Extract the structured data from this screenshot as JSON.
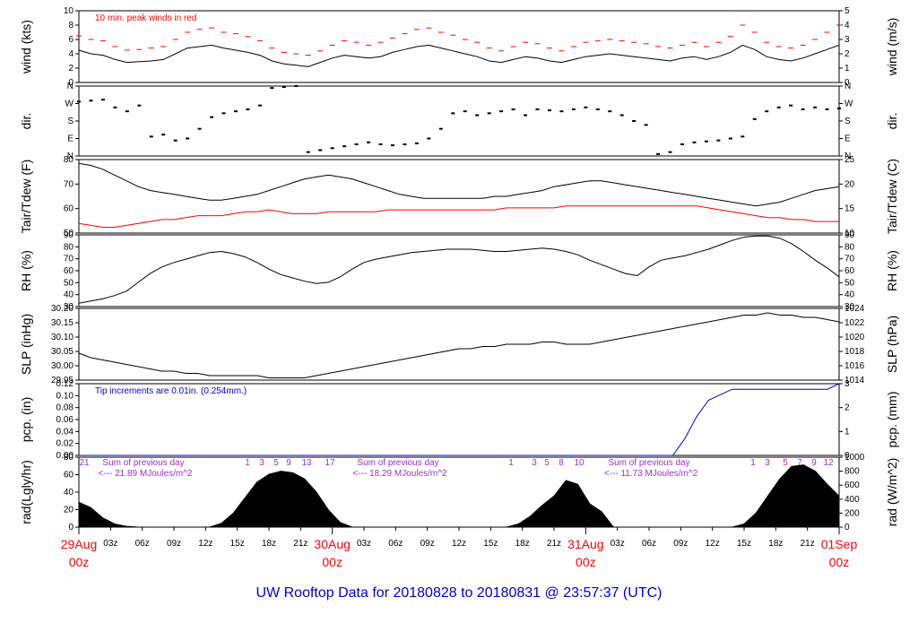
{
  "title": "UW Rooftop Data for 20180828  to  20180831 @ 23:57:37  (UTC)",
  "colors": {
    "title": "#0000cc",
    "peak": "#ff0000",
    "tdew": "#ff0000",
    "pcp": "#0000cc",
    "rad_note": "#9933cc",
    "day_label": "#ff0000",
    "trace": "#000000"
  },
  "time_axis": {
    "hours": [
      "03z",
      "06z",
      "09z",
      "12z",
      "15z",
      "18z",
      "21z",
      "03z",
      "06z",
      "09z",
      "12z",
      "15z",
      "18z",
      "21z",
      "03z",
      "06z",
      "09z",
      "12z",
      "15z",
      "18z",
      "21z"
    ],
    "days": [
      {
        "date": "29Aug",
        "hour": "00z"
      },
      {
        "date": "30Aug",
        "hour": "00z"
      },
      {
        "date": "31Aug",
        "hour": "00z"
      },
      {
        "date": "01Sep",
        "hour": "00z"
      }
    ]
  },
  "chart_data": [
    {
      "type": "line",
      "id": "wind",
      "ylabel_left": "wind (kts)",
      "ylabel_right": "wind (m/s)",
      "ylim": [
        0,
        10
      ],
      "yticks": [
        "0",
        "2",
        "4",
        "6",
        "8",
        "10"
      ],
      "yticks_right": [
        "0",
        "1",
        "2",
        "3",
        "4",
        "5"
      ],
      "annotation": "10 min. peak winds in red",
      "series": [
        {
          "name": "wind",
          "values": [
            4.5,
            4.0,
            3.8,
            3.2,
            2.8,
            2.9,
            3.0,
            3.2,
            4.0,
            4.8,
            5.0,
            5.2,
            4.8,
            4.5,
            4.2,
            3.8,
            3.0,
            2.6,
            2.4,
            2.2,
            2.8,
            3.4,
            3.8,
            3.6,
            3.4,
            3.6,
            4.2,
            4.6,
            5.0,
            5.2,
            4.8,
            4.4,
            4.0,
            3.6,
            3.0,
            2.8,
            3.2,
            3.6,
            3.4,
            3.0,
            2.8,
            3.2,
            3.6,
            3.8,
            4.0,
            3.8,
            3.6,
            3.4,
            3.2,
            3.0,
            3.4,
            3.6,
            3.2,
            3.6,
            4.2,
            5.2,
            4.6,
            3.6,
            3.2,
            3.0,
            3.4,
            4.0,
            4.6,
            5.2
          ]
        },
        {
          "name": "10 min. peak winds",
          "values": [
            6.5,
            6.0,
            5.8,
            5.0,
            4.5,
            4.6,
            4.8,
            5.0,
            6.0,
            7.0,
            7.4,
            7.6,
            7.0,
            6.8,
            6.4,
            5.8,
            4.8,
            4.2,
            4.0,
            3.8,
            4.4,
            5.2,
            5.8,
            5.6,
            5.2,
            5.6,
            6.2,
            6.8,
            7.4,
            7.6,
            7.0,
            6.6,
            6.0,
            5.6,
            4.8,
            4.4,
            5.0,
            5.6,
            5.4,
            4.8,
            4.4,
            5.0,
            5.6,
            5.8,
            6.0,
            5.8,
            5.6,
            5.4,
            5.0,
            4.8,
            5.2,
            5.6,
            5.0,
            5.6,
            6.4,
            8.0,
            7.0,
            5.6,
            5.0,
            4.8,
            5.2,
            6.0,
            7.0,
            8.0
          ]
        }
      ]
    },
    {
      "type": "scatter",
      "id": "dir",
      "ylabel_left": "dir.",
      "ylabel_right": "dir.",
      "yticks": [
        "N",
        "E",
        "S",
        "W",
        "N"
      ],
      "ylim": [
        0,
        360
      ],
      "series": [
        {
          "name": "direction",
          "values": [
            280,
            285,
            290,
            250,
            230,
            260,
            100,
            110,
            80,
            90,
            140,
            200,
            220,
            230,
            240,
            260,
            350,
            355,
            360,
            20,
            30,
            40,
            50,
            60,
            70,
            60,
            55,
            60,
            65,
            90,
            140,
            220,
            230,
            210,
            220,
            230,
            240,
            210,
            240,
            235,
            230,
            240,
            250,
            240,
            230,
            210,
            180,
            160,
            10,
            20,
            60,
            70,
            75,
            80,
            90,
            100,
            190,
            230,
            250,
            260,
            240,
            250,
            240,
            245
          ]
        }
      ]
    },
    {
      "type": "line",
      "id": "temp",
      "ylabel_left": "Tair/Tdew (F)",
      "ylabel_right": "Tair/Tdew (C)",
      "ylim": [
        44,
        82
      ],
      "yticks": [
        "50",
        "60",
        "70",
        "80"
      ],
      "yticks_right": [
        "10",
        "15",
        "20",
        "25"
      ],
      "series": [
        {
          "name": "Tair",
          "values": [
            80,
            79,
            77,
            74,
            71,
            68,
            66,
            65,
            64,
            63,
            62,
            61,
            61,
            62,
            63,
            64,
            66,
            68,
            70,
            72,
            73,
            74,
            73,
            72,
            70,
            68,
            66,
            64,
            63,
            62,
            62,
            62,
            62,
            62,
            62,
            63,
            63,
            64,
            65,
            66,
            68,
            69,
            70,
            71,
            71,
            70,
            69,
            68,
            67,
            66,
            65,
            64,
            63,
            62,
            61,
            60,
            59,
            58,
            59,
            60,
            62,
            64,
            66,
            67,
            68
          ]
        },
        {
          "name": "Tdew",
          "values": [
            49,
            48,
            47,
            47,
            48,
            49,
            50,
            51,
            51,
            52,
            53,
            53,
            53,
            54,
            55,
            55,
            56,
            55,
            54,
            54,
            54,
            55,
            55,
            55,
            55,
            55,
            56,
            56,
            56,
            56,
            56,
            56,
            56,
            56,
            56,
            56,
            57,
            57,
            57,
            57,
            57,
            58,
            58,
            58,
            58,
            58,
            58,
            58,
            58,
            58,
            58,
            58,
            58,
            57,
            56,
            55,
            54,
            53,
            52,
            52,
            51,
            51,
            50,
            50,
            50
          ]
        }
      ]
    },
    {
      "type": "line",
      "id": "rh",
      "ylabel_left": "RH (%)",
      "ylabel_right": "RH (%)",
      "ylim": [
        28,
        93
      ],
      "yticks": [
        "30",
        "40",
        "50",
        "60",
        "70",
        "80",
        "90"
      ],
      "yticks_right": [
        "30",
        "40",
        "50",
        "60",
        "70",
        "80",
        "90"
      ],
      "series": [
        {
          "name": "RH",
          "values": [
            31,
            33,
            35,
            38,
            42,
            50,
            58,
            64,
            68,
            71,
            74,
            77,
            78,
            76,
            73,
            68,
            62,
            57,
            54,
            51,
            49,
            50,
            55,
            62,
            68,
            71,
            73,
            75,
            77,
            78,
            79,
            80,
            80,
            80,
            79,
            78,
            78,
            79,
            80,
            81,
            80,
            78,
            75,
            70,
            66,
            62,
            58,
            56,
            64,
            70,
            72,
            74,
            77,
            80,
            84,
            88,
            91,
            92,
            92,
            90,
            85,
            78,
            70,
            63,
            55
          ]
        }
      ]
    },
    {
      "type": "line",
      "id": "slp",
      "ylabel_left": "SLP (inHg)",
      "ylabel_right": "SLP (hPa)",
      "ylim": [
        29.93,
        30.25
      ],
      "yticks": [
        "29.95",
        "30.00",
        "30.05",
        "30.10",
        "30.15",
        "30.20"
      ],
      "yticks_right": [
        "1014",
        "1016",
        "1018",
        "1020",
        "1022",
        "1024"
      ],
      "series": [
        {
          "name": "SLP",
          "values": [
            30.05,
            30.03,
            30.02,
            30.01,
            30.0,
            29.99,
            29.98,
            29.97,
            29.97,
            29.96,
            29.96,
            29.95,
            29.95,
            29.95,
            29.95,
            29.95,
            29.94,
            29.94,
            29.94,
            29.94,
            29.95,
            29.96,
            29.97,
            29.98,
            29.99,
            30.0,
            30.01,
            30.02,
            30.03,
            30.04,
            30.05,
            30.06,
            30.07,
            30.07,
            30.08,
            30.08,
            30.09,
            30.09,
            30.09,
            30.1,
            30.1,
            30.09,
            30.09,
            30.09,
            30.1,
            30.11,
            30.12,
            30.13,
            30.14,
            30.15,
            30.16,
            30.17,
            30.18,
            30.19,
            30.2,
            30.21,
            30.22,
            30.22,
            30.23,
            30.22,
            30.22,
            30.21,
            30.21,
            30.2,
            30.19
          ]
        }
      ]
    },
    {
      "type": "line",
      "id": "pcp",
      "ylabel_left": "pcp. (in)",
      "ylabel_right": "pcp. (mm)",
      "ylim": [
        0,
        0.13
      ],
      "yticks": [
        "0.00",
        "0.02",
        "0.04",
        "0.06",
        "0.08",
        "0.10",
        "0.12"
      ],
      "yticks_right": [
        "0",
        "1",
        "2",
        "3"
      ],
      "annotation": "Tip increments are 0.01in. (0.254mm.)",
      "series": [
        {
          "name": "pcp",
          "values": [
            0,
            0,
            0,
            0,
            0,
            0,
            0,
            0,
            0,
            0,
            0,
            0,
            0,
            0,
            0,
            0,
            0,
            0,
            0,
            0,
            0,
            0,
            0,
            0,
            0,
            0,
            0,
            0,
            0,
            0,
            0,
            0,
            0,
            0,
            0,
            0,
            0,
            0,
            0,
            0,
            0,
            0,
            0,
            0,
            0,
            0,
            0,
            0,
            0,
            0,
            0,
            0.03,
            0.07,
            0.1,
            0.11,
            0.12,
            0.12,
            0.12,
            0.12,
            0.12,
            0.12,
            0.12,
            0.12,
            0.12,
            0.13
          ]
        }
      ]
    },
    {
      "type": "area",
      "id": "rad",
      "ylabel_left": "rad(Lgly/hr)",
      "ylabel_right": "rad (W/m^2)",
      "ylim": [
        0,
        90
      ],
      "yticks": [
        "0",
        "20",
        "40",
        "60",
        "80"
      ],
      "yticks_right": [
        "0",
        "200",
        "400",
        "600",
        "800",
        "1000"
      ],
      "notes": [
        {
          "text": "Sum of previous day",
          "value": "<--- 21.89 MJoules/m^2"
        },
        {
          "text": "Sum of previous day",
          "value": "<--- 18.29 MJoules/m^2"
        },
        {
          "text": "Sum of previous day",
          "value": "<--- 11.73 MJoules/m^2"
        }
      ],
      "uv_labels": [
        "21",
        "1",
        "3",
        "5",
        "9",
        "13",
        "17",
        "1",
        "3",
        "5",
        "8",
        "10",
        "1",
        "3",
        "5",
        "7",
        "9",
        "12"
      ],
      "series": [
        {
          "name": "rad",
          "values": [
            32,
            25,
            12,
            4,
            1,
            0,
            0,
            0,
            0,
            0,
            0,
            0,
            5,
            18,
            38,
            58,
            68,
            72,
            70,
            62,
            45,
            22,
            6,
            0,
            0,
            0,
            0,
            0,
            0,
            0,
            0,
            0,
            0,
            0,
            0,
            0,
            0,
            4,
            14,
            28,
            40,
            60,
            55,
            30,
            20,
            0,
            0,
            0,
            0,
            0,
            0,
            0,
            0,
            0,
            0,
            0,
            4,
            18,
            40,
            62,
            78,
            80,
            72,
            55,
            40
          ]
        }
      ]
    }
  ]
}
